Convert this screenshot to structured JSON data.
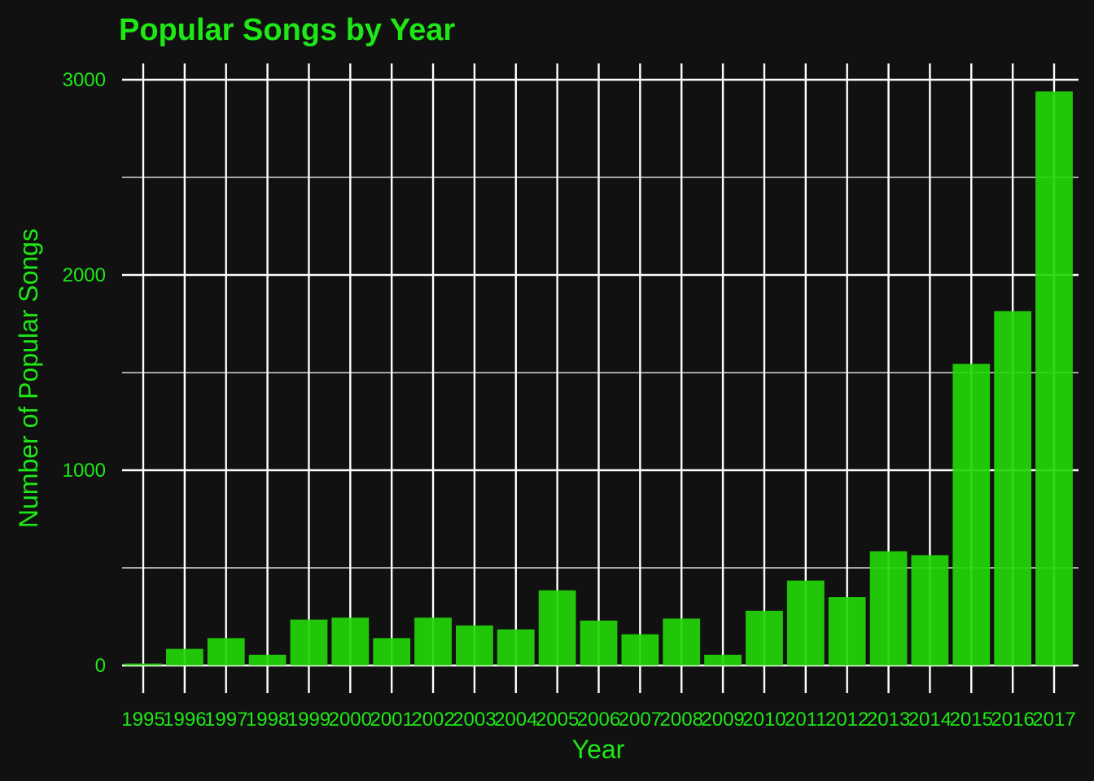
{
  "colors": {
    "background": "#111111",
    "grid": "#ffffff",
    "bar": "#22d606",
    "text": "#1ee815"
  },
  "chart_data": {
    "type": "bar",
    "title": "Popular Songs by Year",
    "xlabel": "Year",
    "ylabel": "Number of Popular Songs",
    "categories": [
      "1995",
      "1996",
      "1997",
      "1998",
      "1999",
      "2000",
      "2001",
      "2002",
      "2003",
      "2004",
      "2005",
      "2006",
      "2007",
      "2008",
      "2009",
      "2010",
      "2011",
      "2012",
      "2013",
      "2014",
      "2015",
      "2016",
      "2017"
    ],
    "values": [
      10,
      85,
      140,
      55,
      235,
      245,
      140,
      245,
      205,
      185,
      385,
      230,
      160,
      240,
      55,
      280,
      435,
      350,
      585,
      565,
      1545,
      1815,
      2940
    ],
    "ylim": [
      0,
      3000
    ],
    "yticks": [
      0,
      1000,
      2000,
      3000
    ],
    "grid": true,
    "legend": "none"
  }
}
